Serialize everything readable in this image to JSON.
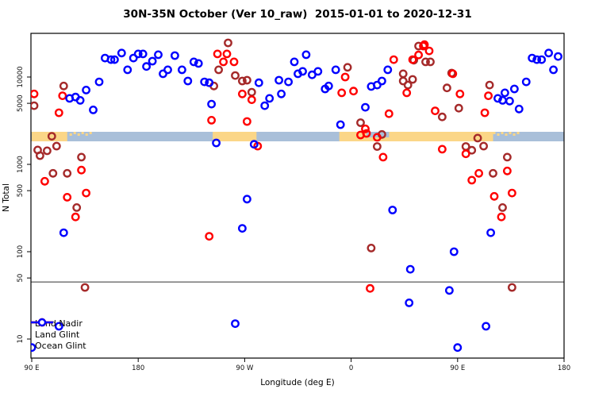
{
  "title": "30N-35N October (Ver 10_raw)  2015-01-01 to 2020-12-31",
  "axes": {
    "x_label": "Longitude (deg E)",
    "y_label": "N Total",
    "x_ticks": [
      {
        "lon": 90,
        "label": "90 E"
      },
      {
        "lon": 180,
        "label": "180"
      },
      {
        "lon": 270,
        "label": "90 W"
      },
      {
        "lon": 360,
        "label": "0"
      },
      {
        "lon": 450,
        "label": "90 E"
      },
      {
        "lon": 540,
        "label": "180"
      }
    ],
    "y_ticks": [
      {
        "value": 10000,
        "label": "10000"
      },
      {
        "value": 5000,
        "label": "5000"
      },
      {
        "value": 1000,
        "label": "1000"
      },
      {
        "value": 500,
        "label": "500"
      },
      {
        "value": 100,
        "label": "100"
      },
      {
        "value": 50,
        "label": "50"
      },
      {
        "value": 10,
        "label": "10"
      }
    ]
  },
  "legend": {
    "items": [
      {
        "label": "Land Nadir",
        "color": "#A52A2A"
      },
      {
        "label": "Land Glint",
        "color": "#FF0000"
      },
      {
        "label": "Ocean Glint",
        "color": "#0000FF"
      }
    ]
  },
  "map_strip": {
    "ocean_color": "#A9BFD9",
    "land_color": "#FBD687",
    "value_range": [
      1800,
      2400
    ],
    "land_segments_lon": [
      [
        90,
        120
      ],
      [
        243,
        280
      ],
      [
        350,
        480
      ]
    ],
    "island_segments_lon": [
      [
        122,
        142
      ],
      [
        480,
        502
      ]
    ],
    "sea_notch_lon": [
      373,
      392
    ]
  },
  "threshold_line_value": 45,
  "chart_data": {
    "type": "scatter",
    "title": "30N-35N October (Ver 10_raw)  2015-01-01 to 2020-12-31",
    "xlabel": "Longitude (deg E)",
    "ylabel": "N Total",
    "y_scale": "log",
    "xlim": [
      90,
      540
    ],
    "ylim": [
      6,
      31000
    ],
    "x_axis_note": "longitude axis wraps eastward: 90E > 180 > 90W > 0 > 90E > 180; plotted coordinate runs 90..540",
    "legend_position": "bottom-left",
    "series": [
      {
        "name": "Land Nadir",
        "color": "#A52A2A",
        "points": [
          [
            92,
            4700
          ],
          [
            117,
            7900
          ],
          [
            256,
            24600
          ],
          [
            244,
            7900
          ],
          [
            248,
            12100
          ],
          [
            262,
            10400
          ],
          [
            268,
            9000
          ],
          [
            272,
            9200
          ],
          [
            276,
            6700
          ],
          [
            357,
            12900
          ],
          [
            413,
            15600
          ],
          [
            417,
            22600
          ],
          [
            423,
            14900
          ],
          [
            427,
            14900
          ],
          [
            404,
            10900
          ],
          [
            404,
            9000
          ],
          [
            412,
            9400
          ],
          [
            408,
            8100
          ],
          [
            368,
            3000
          ],
          [
            377,
            110
          ],
          [
            382,
            1600
          ],
          [
            386,
            2200
          ],
          [
            445,
            11100
          ],
          [
            441,
            7500
          ],
          [
            451,
            4400
          ],
          [
            437,
            3500
          ],
          [
            467,
            2000
          ],
          [
            457,
            1600
          ],
          [
            462,
            1450
          ],
          [
            472,
            1620
          ],
          [
            477,
            8100
          ],
          [
            492,
            1210
          ],
          [
            480,
            790
          ],
          [
            488,
            320
          ],
          [
            496,
            39
          ],
          [
            107,
            2100
          ],
          [
            111,
            1620
          ],
          [
            95,
            1460
          ],
          [
            103,
            1430
          ],
          [
            97,
            1260
          ],
          [
            132,
            1210
          ],
          [
            108,
            790
          ],
          [
            120,
            790
          ],
          [
            128,
            320
          ],
          [
            135,
            39
          ]
        ]
      },
      {
        "name": "Land Glint",
        "color": "#FF0000",
        "points": [
          [
            92,
            6400
          ],
          [
            116,
            6100
          ],
          [
            113,
            3900
          ],
          [
            247,
            18400
          ],
          [
            255,
            18400
          ],
          [
            252,
            14900
          ],
          [
            261,
            14900
          ],
          [
            268,
            6400
          ],
          [
            276,
            5500
          ],
          [
            272,
            3100
          ],
          [
            242,
            3200
          ],
          [
            355,
            10000
          ],
          [
            352,
            6600
          ],
          [
            362,
            6900
          ],
          [
            396,
            15800
          ],
          [
            412,
            15800
          ],
          [
            417,
            17900
          ],
          [
            422,
            23500
          ],
          [
            426,
            19900
          ],
          [
            421,
            22600
          ],
          [
            407,
            6600
          ],
          [
            392,
            3800
          ],
          [
            372,
            2550
          ],
          [
            431,
            4100
          ],
          [
            368,
            2170
          ],
          [
            373,
            2260
          ],
          [
            382,
            2040
          ],
          [
            387,
            1210
          ],
          [
            376,
            38
          ],
          [
            446,
            10900
          ],
          [
            452,
            6400
          ],
          [
            437,
            1490
          ],
          [
            457,
            1320
          ],
          [
            468,
            790
          ],
          [
            462,
            660
          ],
          [
            492,
            840
          ],
          [
            496,
            470
          ],
          [
            481,
            430
          ],
          [
            487,
            250
          ],
          [
            473,
            3900
          ],
          [
            476,
            6100
          ],
          [
            281,
            1620
          ],
          [
            240,
            150
          ],
          [
            101,
            640
          ],
          [
            132,
            860
          ],
          [
            120,
            420
          ],
          [
            136,
            470
          ],
          [
            127,
            250
          ]
        ]
      },
      {
        "name": "Ocean Glint",
        "color": "#0000FF",
        "points": [
          [
            122,
            5700
          ],
          [
            127,
            5900
          ],
          [
            131,
            5400
          ],
          [
            136,
            7100
          ],
          [
            142,
            4200
          ],
          [
            147,
            8800
          ],
          [
            152,
            16500
          ],
          [
            157,
            15800
          ],
          [
            160,
            15800
          ],
          [
            166,
            18800
          ],
          [
            171,
            12100
          ],
          [
            176,
            16500
          ],
          [
            180,
            18400
          ],
          [
            184,
            18400
          ],
          [
            187,
            13200
          ],
          [
            192,
            15200
          ],
          [
            197,
            18000
          ],
          [
            201,
            10900
          ],
          [
            211,
            17600
          ],
          [
            205,
            12100
          ],
          [
            217,
            12100
          ],
          [
            227,
            14900
          ],
          [
            231,
            14300
          ],
          [
            222,
            9000
          ],
          [
            236,
            8800
          ],
          [
            240,
            8600
          ],
          [
            242,
            4900
          ],
          [
            282,
            8600
          ],
          [
            287,
            4700
          ],
          [
            291,
            5700
          ],
          [
            299,
            9200
          ],
          [
            301,
            6400
          ],
          [
            307,
            8800
          ],
          [
            312,
            14900
          ],
          [
            315,
            10900
          ],
          [
            322,
            18000
          ],
          [
            319,
            11600
          ],
          [
            327,
            10600
          ],
          [
            332,
            11600
          ],
          [
            347,
            12100
          ],
          [
            338,
            7300
          ],
          [
            341,
            7900
          ],
          [
            372,
            4500
          ],
          [
            377,
            7800
          ],
          [
            382,
            8100
          ],
          [
            386,
            9000
          ],
          [
            391,
            12100
          ],
          [
            351,
            2850
          ],
          [
            484,
            5700
          ],
          [
            488,
            5400
          ],
          [
            494,
            5300
          ],
          [
            490,
            6600
          ],
          [
            498,
            7300
          ],
          [
            502,
            4300
          ],
          [
            508,
            8800
          ],
          [
            513,
            16500
          ],
          [
            517,
            15800
          ],
          [
            521,
            15800
          ],
          [
            527,
            18800
          ],
          [
            535,
            17200
          ],
          [
            531,
            12100
          ],
          [
            395,
            300
          ],
          [
            410,
            63
          ],
          [
            409,
            26
          ],
          [
            246,
            1760
          ],
          [
            278,
            1700
          ],
          [
            272,
            400
          ],
          [
            268,
            185
          ],
          [
            262,
            15
          ],
          [
            117,
            165
          ],
          [
            113,
            14
          ],
          [
            90,
            8
          ],
          [
            478,
            165
          ],
          [
            447,
            100
          ],
          [
            443,
            36
          ],
          [
            474,
            14
          ],
          [
            450,
            8
          ]
        ]
      }
    ]
  }
}
